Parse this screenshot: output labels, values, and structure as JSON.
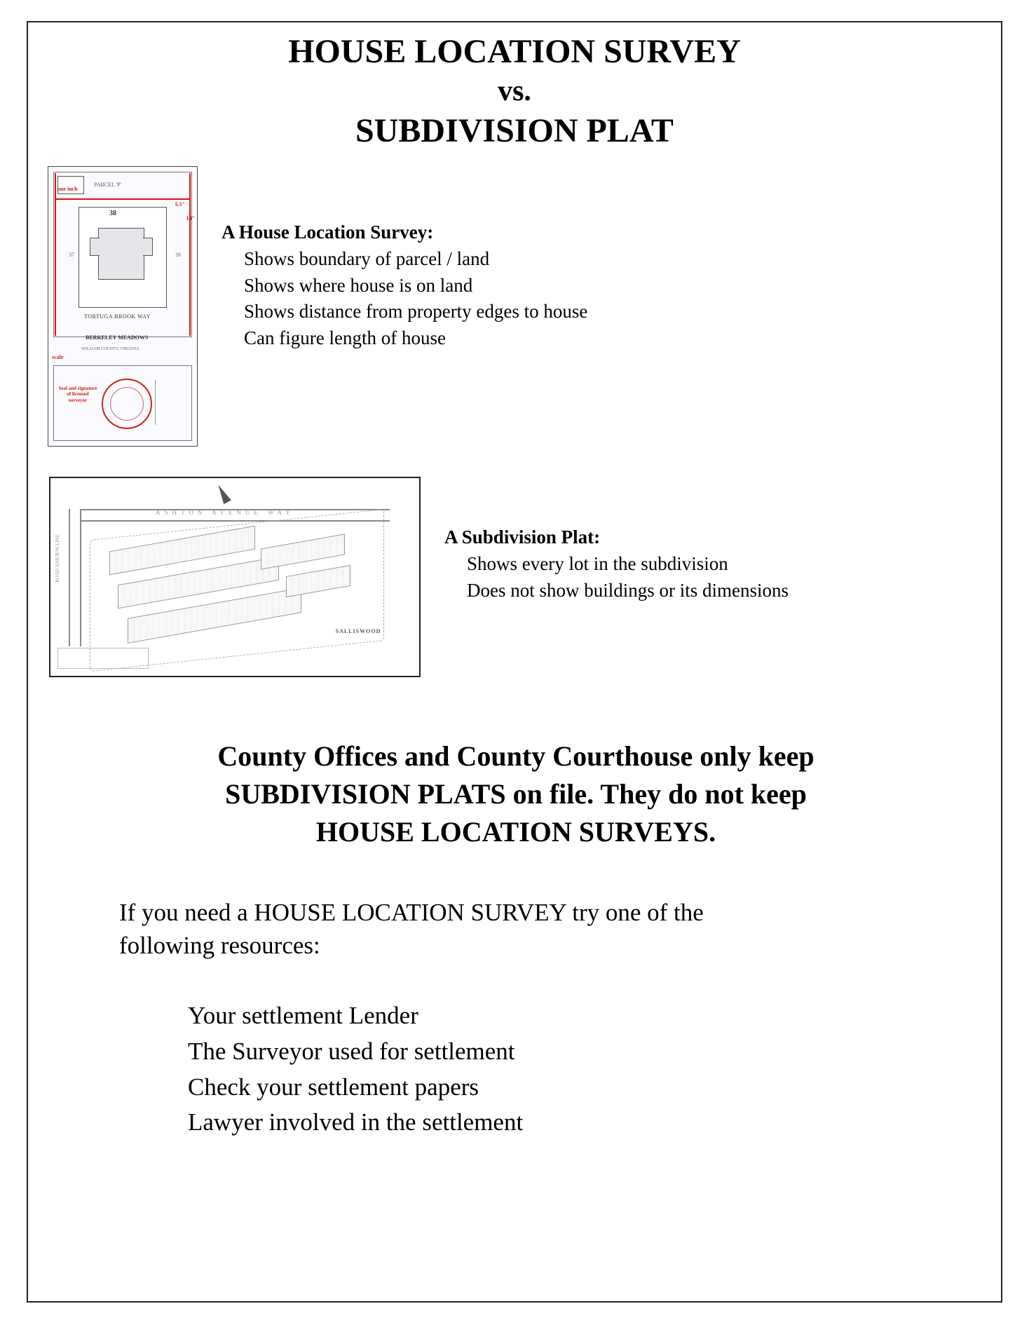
{
  "colors": {
    "page_border": "#222222",
    "text": "#000000",
    "accent_red": "#cc1a1a",
    "faint_gray": "#888888",
    "background": "#ffffff"
  },
  "typography": {
    "family": "Times New Roman",
    "title_fontsize_pt": 36,
    "vs_fontsize_pt": 30,
    "body_fontsize_pt": 20,
    "mid_fontsize_pt": 30,
    "resources_fontsize_pt": 26
  },
  "title": {
    "line1": "HOUSE LOCATION SURVEY",
    "vs": "vs.",
    "line2": "SUBDIVISION PLAT"
  },
  "survey": {
    "heading": "A House Location Survey:",
    "items": [
      "Shows boundary of parcel / land",
      "Shows where house is on land",
      "Shows distance from property edges to house",
      "Can figure length of house"
    ],
    "thumb": {
      "type": "survey-diagram",
      "street": "TORTUGA BROOK WAY",
      "subdivision": "BERKELEY MEADOWS",
      "county": "WILLIAM COUNTY, VIRGINIA",
      "parcel_label": "PARCEL 'P'",
      "lot_number": "38",
      "adj_left_lot": "37",
      "adj_right_lot": "39",
      "scale_label": "scale",
      "one_inch_label": "one inch",
      "dim_top": "5.5\"",
      "dim_side": "14\"",
      "seal_text": "Seal\nand\nsignature\nof licensed\nsurveyor",
      "accent_color": "#cc1a1a",
      "line_color": "#555555",
      "house_fill": "#e6e6ea"
    }
  },
  "plat": {
    "heading": "A Subdivision Plat:",
    "items": [
      "Shows every lot in the subdivision",
      "Does not show buildings or its dimensions"
    ],
    "thumb": {
      "type": "subdivision-plat",
      "avenue_label": "ASHTON   AVENUE   WAY",
      "left_road_label": "ROAD  AND  R/W  LINE",
      "plat_name": "SALLISWOOD",
      "line_color": "#888888",
      "background": "#ffffff"
    }
  },
  "mid_statement": {
    "line1": "County Offices and County Courthouse only keep",
    "line2": "SUBDIVISION PLATS on file. They do not keep",
    "line3": "HOUSE LOCATION SURVEYS."
  },
  "resources": {
    "intro_l1": "If you need a HOUSE LOCATION SURVEY try one of the",
    "intro_l2": "following resources:",
    "items": [
      "Your settlement Lender",
      "The Surveyor used for settlement",
      "Check your settlement papers",
      "Lawyer involved in the settlement"
    ]
  }
}
